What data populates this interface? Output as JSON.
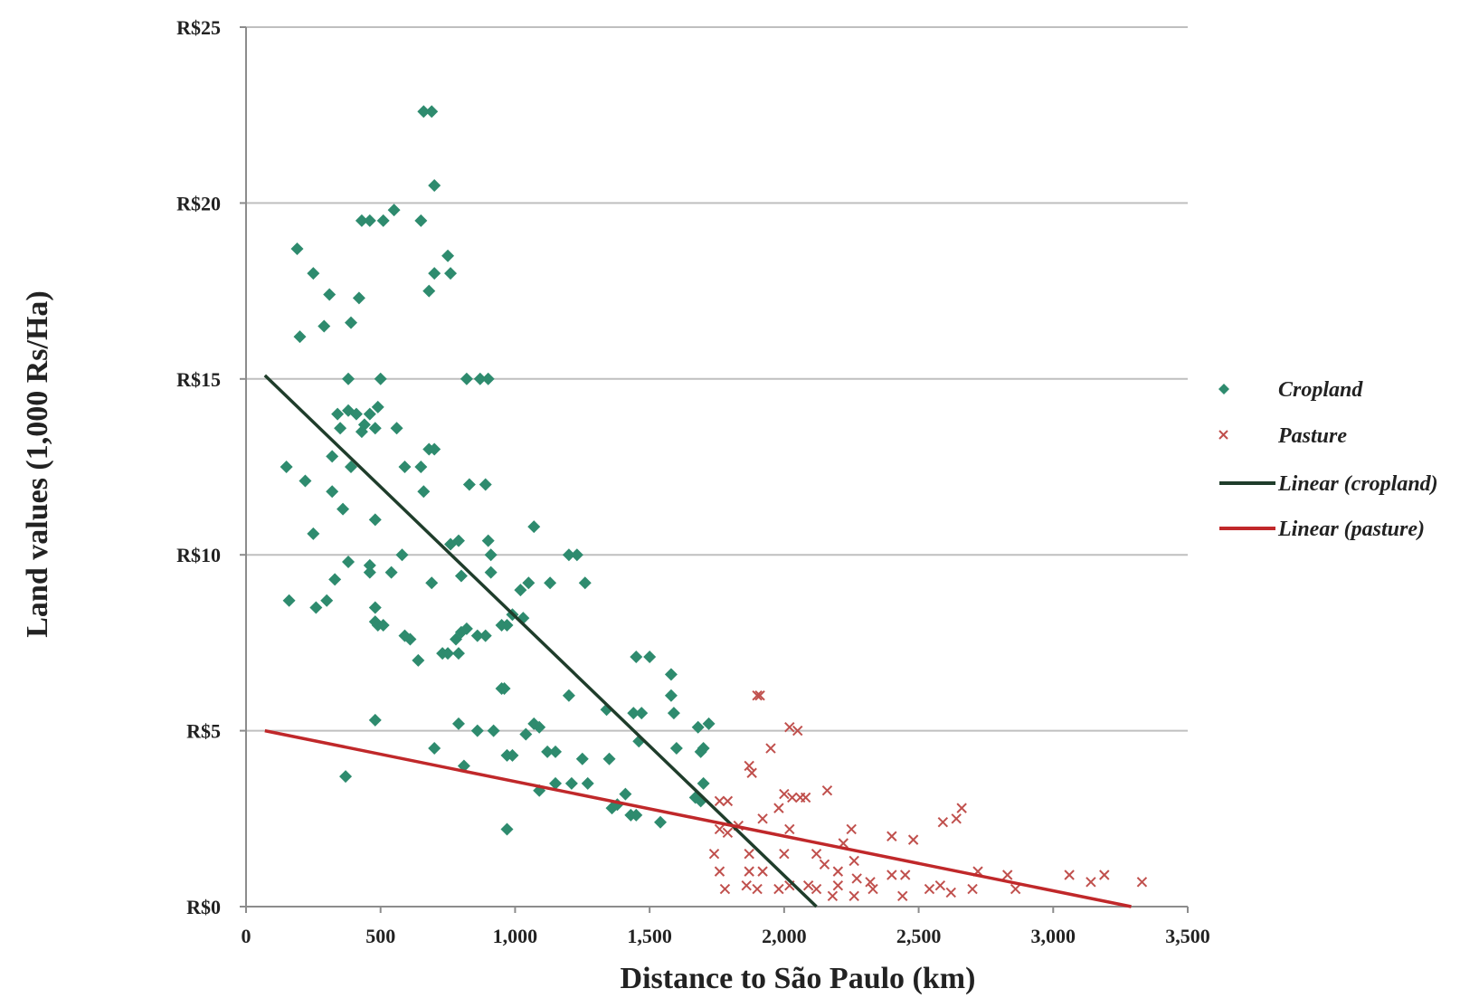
{
  "chart_data": {
    "type": "scatter",
    "xlabel": "Distance to São Paulo (km)",
    "ylabel": "Land values (1,000 Rs/Ha)",
    "xlim": [
      0,
      3500
    ],
    "ylim": [
      0,
      25
    ],
    "x_ticks": [
      "0",
      "500",
      "1,000",
      "1,500",
      "2,000",
      "2,500",
      "3,000",
      "3,500"
    ],
    "y_ticks": [
      "R$0",
      "R$5",
      "R$10",
      "R$15",
      "R$20",
      "R$25"
    ],
    "grid": "horizontal",
    "legend_position": "right",
    "legend": [
      "Cropland",
      "Pasture",
      "Linear (cropland)",
      "Linear (pasture)"
    ],
    "colors": {
      "cropland": "#2e8b6e",
      "pasture": "#c0504d",
      "linear_cropland": "#1f3d2b",
      "linear_pasture": "#c0282a",
      "grid": "#bfbfbf"
    },
    "series": [
      {
        "name": "Cropland",
        "marker": "diamond",
        "points": [
          [
            690,
            22.6
          ],
          [
            660,
            22.6
          ],
          [
            700,
            20.5
          ],
          [
            550,
            19.8
          ],
          [
            650,
            19.5
          ],
          [
            430,
            19.5
          ],
          [
            460,
            19.5
          ],
          [
            510,
            19.5
          ],
          [
            190,
            18.7
          ],
          [
            750,
            18.5
          ],
          [
            700,
            18
          ],
          [
            760,
            18
          ],
          [
            250,
            18
          ],
          [
            680,
            17.5
          ],
          [
            310,
            17.4
          ],
          [
            420,
            17.3
          ],
          [
            290,
            16.5
          ],
          [
            390,
            16.6
          ],
          [
            200,
            16.2
          ],
          [
            380,
            15
          ],
          [
            500,
            15
          ],
          [
            820,
            15
          ],
          [
            870,
            15
          ],
          [
            900,
            15
          ],
          [
            340,
            14
          ],
          [
            380,
            14.1
          ],
          [
            410,
            14
          ],
          [
            440,
            13.7
          ],
          [
            460,
            14
          ],
          [
            490,
            14.2
          ],
          [
            350,
            13.6
          ],
          [
            430,
            13.5
          ],
          [
            480,
            13.6
          ],
          [
            560,
            13.6
          ],
          [
            680,
            13
          ],
          [
            700,
            13
          ],
          [
            320,
            12.8
          ],
          [
            390,
            12.5
          ],
          [
            150,
            12.5
          ],
          [
            220,
            12.1
          ],
          [
            590,
            12.5
          ],
          [
            650,
            12.5
          ],
          [
            830,
            12
          ],
          [
            890,
            12
          ],
          [
            320,
            11.8
          ],
          [
            660,
            11.8
          ],
          [
            360,
            11.3
          ],
          [
            480,
            11
          ],
          [
            1070,
            10.8
          ],
          [
            250,
            10.6
          ],
          [
            760,
            10.3
          ],
          [
            790,
            10.4
          ],
          [
            900,
            10.4
          ],
          [
            1200,
            10
          ],
          [
            1230,
            10
          ],
          [
            910,
            10
          ],
          [
            580,
            10
          ],
          [
            380,
            9.8
          ],
          [
            460,
            9.7
          ],
          [
            460,
            9.5
          ],
          [
            540,
            9.5
          ],
          [
            800,
            9.4
          ],
          [
            910,
            9.5
          ],
          [
            690,
            9.2
          ],
          [
            1050,
            9.2
          ],
          [
            1130,
            9.2
          ],
          [
            1260,
            9.2
          ],
          [
            1020,
            9
          ],
          [
            330,
            9.3
          ],
          [
            160,
            8.7
          ],
          [
            300,
            8.7
          ],
          [
            260,
            8.5
          ],
          [
            480,
            8.5
          ],
          [
            1030,
            8.2
          ],
          [
            990,
            8.3
          ],
          [
            950,
            8
          ],
          [
            970,
            8
          ],
          [
            480,
            8.1
          ],
          [
            490,
            8
          ],
          [
            510,
            8
          ],
          [
            860,
            7.7
          ],
          [
            890,
            7.7
          ],
          [
            800,
            7.8
          ],
          [
            780,
            7.6
          ],
          [
            820,
            7.9
          ],
          [
            590,
            7.7
          ],
          [
            610,
            7.6
          ],
          [
            730,
            7.2
          ],
          [
            750,
            7.2
          ],
          [
            790,
            7.2
          ],
          [
            640,
            7
          ],
          [
            1450,
            7.1
          ],
          [
            1500,
            7.1
          ],
          [
            1580,
            6.6
          ],
          [
            950,
            6.2
          ],
          [
            960,
            6.2
          ],
          [
            1200,
            6
          ],
          [
            1580,
            6
          ],
          [
            1590,
            5.5
          ],
          [
            1340,
            5.6
          ],
          [
            1440,
            5.5
          ],
          [
            1470,
            5.5
          ],
          [
            1680,
            5.1
          ],
          [
            1720,
            5.2
          ],
          [
            480,
            5.3
          ],
          [
            790,
            5.2
          ],
          [
            860,
            5
          ],
          [
            920,
            5
          ],
          [
            1070,
            5.2
          ],
          [
            1090,
            5.1
          ],
          [
            1040,
            4.9
          ],
          [
            1460,
            4.7
          ],
          [
            700,
            4.5
          ],
          [
            1600,
            4.5
          ],
          [
            1700,
            4.5
          ],
          [
            1690,
            4.4
          ],
          [
            1120,
            4.4
          ],
          [
            1150,
            4.4
          ],
          [
            990,
            4.3
          ],
          [
            970,
            4.3
          ],
          [
            1250,
            4.2
          ],
          [
            1350,
            4.2
          ],
          [
            810,
            4
          ],
          [
            370,
            3.7
          ],
          [
            1150,
            3.5
          ],
          [
            1210,
            3.5
          ],
          [
            1270,
            3.5
          ],
          [
            1700,
            3.5
          ],
          [
            1090,
            3.3
          ],
          [
            1410,
            3.2
          ],
          [
            1670,
            3.1
          ],
          [
            1690,
            3
          ],
          [
            1360,
            2.8
          ],
          [
            1380,
            2.9
          ],
          [
            1430,
            2.6
          ],
          [
            1450,
            2.6
          ],
          [
            1540,
            2.4
          ],
          [
            970,
            2.2
          ]
        ]
      },
      {
        "name": "Pasture",
        "marker": "x",
        "points": [
          [
            1900,
            6
          ],
          [
            1910,
            6
          ],
          [
            2020,
            5.1
          ],
          [
            2050,
            5
          ],
          [
            1950,
            4.5
          ],
          [
            1870,
            4
          ],
          [
            1880,
            3.8
          ],
          [
            2000,
            3.2
          ],
          [
            2030,
            3.1
          ],
          [
            2060,
            3.1
          ],
          [
            2080,
            3.1
          ],
          [
            2160,
            3.3
          ],
          [
            1760,
            3
          ],
          [
            1790,
            3
          ],
          [
            1980,
            2.8
          ],
          [
            1920,
            2.5
          ],
          [
            2020,
            2.2
          ],
          [
            2660,
            2.8
          ],
          [
            2640,
            2.5
          ],
          [
            2590,
            2.4
          ],
          [
            1760,
            2.2
          ],
          [
            1790,
            2.1
          ],
          [
            1830,
            2.3
          ],
          [
            2250,
            2.2
          ],
          [
            2400,
            2
          ],
          [
            2480,
            1.9
          ],
          [
            2220,
            1.8
          ],
          [
            1740,
            1.5
          ],
          [
            1870,
            1.5
          ],
          [
            2000,
            1.5
          ],
          [
            2120,
            1.5
          ],
          [
            2260,
            1.3
          ],
          [
            1760,
            1
          ],
          [
            1870,
            1
          ],
          [
            1920,
            1
          ],
          [
            2150,
            1.2
          ],
          [
            2200,
            1
          ],
          [
            2270,
            0.8
          ],
          [
            2320,
            0.7
          ],
          [
            2400,
            0.9
          ],
          [
            2450,
            0.9
          ],
          [
            2720,
            1
          ],
          [
            2830,
            0.9
          ],
          [
            3060,
            0.9
          ],
          [
            3140,
            0.7
          ],
          [
            3190,
            0.9
          ],
          [
            3330,
            0.7
          ],
          [
            1780,
            0.5
          ],
          [
            1860,
            0.6
          ],
          [
            1900,
            0.5
          ],
          [
            1980,
            0.5
          ],
          [
            2020,
            0.6
          ],
          [
            2090,
            0.6
          ],
          [
            2120,
            0.5
          ],
          [
            2200,
            0.6
          ],
          [
            2330,
            0.5
          ],
          [
            2540,
            0.5
          ],
          [
            2580,
            0.6
          ],
          [
            2620,
            0.4
          ],
          [
            2700,
            0.5
          ],
          [
            2860,
            0.5
          ],
          [
            2180,
            0.3
          ],
          [
            2260,
            0.3
          ],
          [
            2440,
            0.3
          ]
        ]
      },
      {
        "name": "Linear (cropland)",
        "type": "line",
        "x": [
          70,
          2120
        ],
        "y": [
          15.1,
          0
        ]
      },
      {
        "name": "Linear (pasture)",
        "type": "line",
        "x": [
          70,
          3290
        ],
        "y": [
          5,
          0
        ]
      }
    ]
  }
}
